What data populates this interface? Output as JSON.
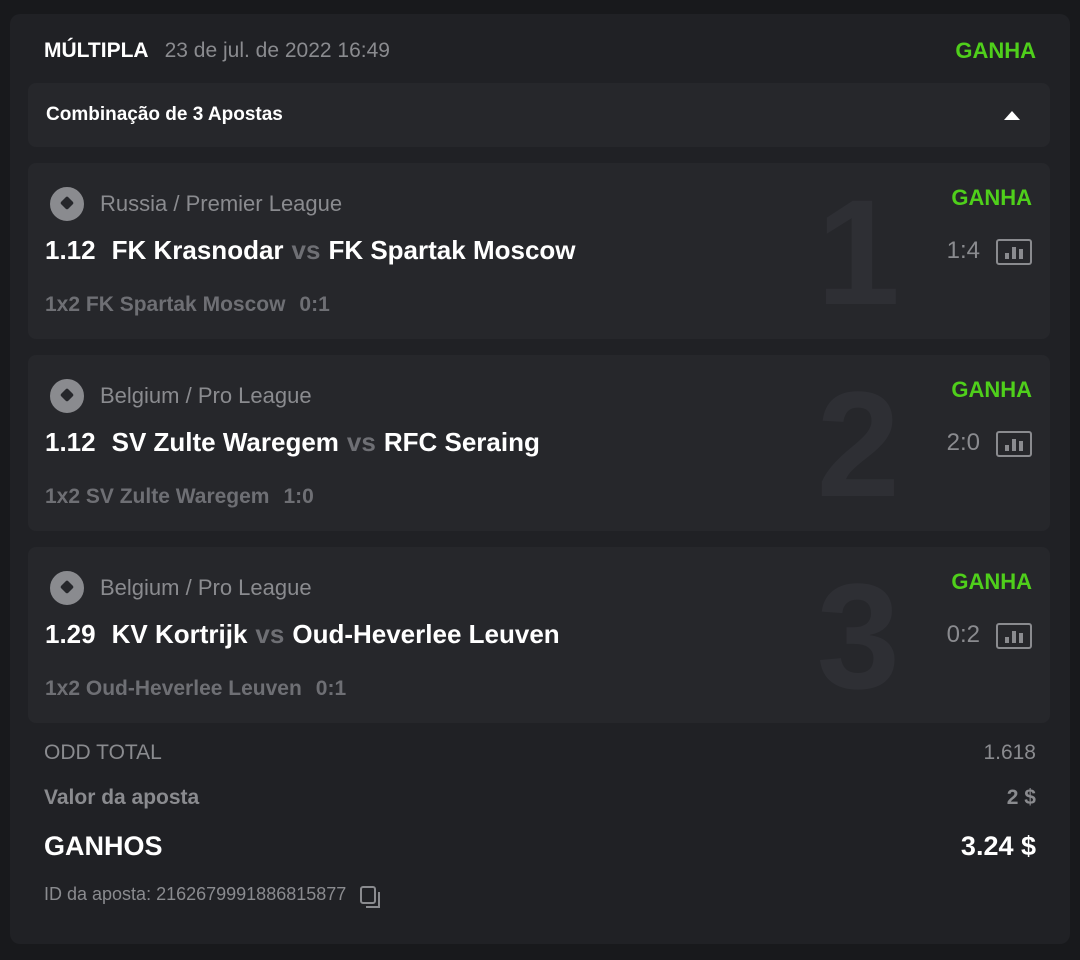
{
  "header": {
    "title": "MÚLTIPLA",
    "date": "23 de jul. de 2022 16:49",
    "status": "GANHA"
  },
  "combo": {
    "label": "Combinação de 3 Apostas"
  },
  "colors": {
    "win": "#4fcf1b",
    "bg": "#202125"
  },
  "events": [
    {
      "index": "1",
      "league": "Russia / Premier League",
      "status": "GANHA",
      "odd": "1.12",
      "home": "FK Krasnodar",
      "vs": "vs",
      "away": "FK Spartak Moscow",
      "score": "1:4",
      "pick": "1x2 FK Spartak Moscow",
      "pick_score": "0:1"
    },
    {
      "index": "2",
      "league": "Belgium / Pro League",
      "status": "GANHA",
      "odd": "1.12",
      "home": "SV Zulte Waregem",
      "vs": "vs",
      "away": "RFC Seraing",
      "score": "2:0",
      "pick": "1x2 SV Zulte Waregem",
      "pick_score": "1:0"
    },
    {
      "index": "3",
      "league": "Belgium / Pro League",
      "status": "GANHA",
      "odd": "1.29",
      "home": "KV Kortrijk",
      "vs": "vs",
      "away": "Oud-Heverlee Leuven",
      "score": "0:2",
      "pick": "1x2 Oud-Heverlee Leuven",
      "pick_score": "0:1"
    }
  ],
  "summary": {
    "odd_label": "ODD TOTAL",
    "odd_value": "1.618",
    "stake_label": "Valor da aposta",
    "stake_value": "2 $",
    "win_label": "GANHOS",
    "win_value": "3.24 $",
    "id_label": "ID da aposta: 2162679991886815877"
  }
}
